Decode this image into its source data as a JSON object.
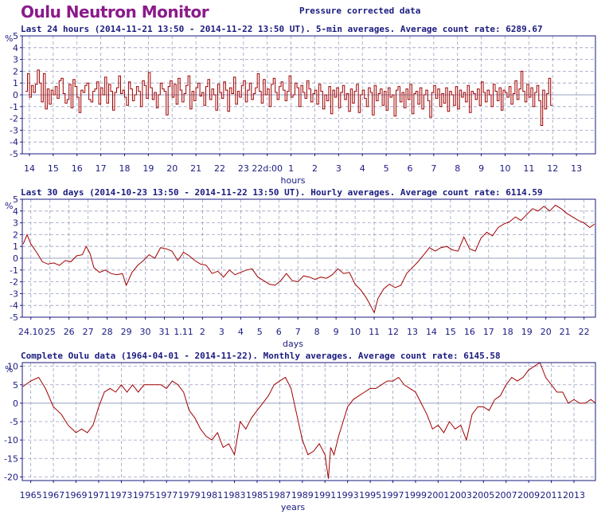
{
  "header": {
    "title": "Oulu Neutron Monitor",
    "subtitle": "Pressure corrected data"
  },
  "colors": {
    "line": "#a00000",
    "frame": "#1a1a80",
    "grid": "#9aa0c0",
    "title": "#8b1a8b"
  },
  "chart_data": [
    {
      "type": "line",
      "title": "Last 24 hours (2014-11-21 13:50 - 2014-11-22 13:50 UT). 5-min averages. Average count rate: 6289.67",
      "ylabel": "%",
      "xlabel": "hours",
      "ylim": [
        -5,
        5
      ],
      "yticks": [
        -5,
        -4,
        -3,
        -2,
        -1,
        0,
        1,
        2,
        3,
        4,
        5
      ],
      "xlim": [
        13.7,
        37.8
      ],
      "xticks": [
        {
          "x": 14,
          "label": "14"
        },
        {
          "x": 15,
          "label": "15"
        },
        {
          "x": 16,
          "label": "16"
        },
        {
          "x": 17,
          "label": "17"
        },
        {
          "x": 18,
          "label": "18"
        },
        {
          "x": 19,
          "label": "19"
        },
        {
          "x": 20,
          "label": "20"
        },
        {
          "x": 21,
          "label": "21"
        },
        {
          "x": 22,
          "label": "22"
        },
        {
          "x": 23,
          "label": "23"
        },
        {
          "x": 24,
          "label": "22d:00"
        },
        {
          "x": 25,
          "label": "1"
        },
        {
          "x": 26,
          "label": "2"
        },
        {
          "x": 27,
          "label": "3"
        },
        {
          "x": 28,
          "label": "4"
        },
        {
          "x": 29,
          "label": "5"
        },
        {
          "x": 30,
          "label": "6"
        },
        {
          "x": 31,
          "label": "7"
        },
        {
          "x": 32,
          "label": "8"
        },
        {
          "x": 33,
          "label": "9"
        },
        {
          "x": 34,
          "label": "10"
        },
        {
          "x": 35,
          "label": "11"
        },
        {
          "x": 36,
          "label": "12"
        },
        {
          "x": 37,
          "label": "13"
        }
      ],
      "grid": true,
      "step": true,
      "series": [
        {
          "x_start": 13.833,
          "x_step": 0.08333,
          "values": [
            0.3,
            1.8,
            -0.2,
            0.8,
            0.2,
            0.9,
            2.1,
            1.0,
            -0.6,
            1.8,
            -1.2,
            0.5,
            -0.8,
            0.4,
            0.0,
            0.7,
            -0.3,
            1.2,
            1.4,
            0.1,
            -0.7,
            -0.4,
            0.9,
            -1.1,
            1.3,
            0.7,
            -0.2,
            -1.5,
            0.4,
            0.2,
            0.8,
            1.0,
            -0.4,
            -0.6,
            0.3,
            0.5,
            1.1,
            -0.8,
            0.6,
            0.0,
            1.5,
            -0.7,
            0.9,
            0.3,
            -1.3,
            0.2,
            0.6,
            1.6,
            0.1,
            0.4,
            -0.2,
            -0.9,
            1.1,
            0.5,
            -0.5,
            0.0,
            0.7,
            0.3,
            -1.0,
            1.2,
            0.8,
            -0.3,
            1.9,
            0.6,
            -0.4,
            0.2,
            -1.1,
            0.0,
            1.0,
            0.5,
            0.3,
            -1.7,
            0.7,
            1.2,
            -0.2,
            0.9,
            -0.8,
            1.4,
            0.4,
            -0.6,
            0.1,
            0.8,
            1.6,
            -1.2,
            0.3,
            -0.5,
            0.6,
            1.0,
            -0.1,
            0.2,
            -0.9,
            0.7,
            1.3,
            -0.4,
            0.5,
            0.0,
            -1.3,
            0.9,
            0.2,
            -0.3,
            1.1,
            0.4,
            -1.4,
            0.6,
            0.1,
            1.5,
            -0.8,
            0.3,
            -0.2,
            0.8,
            1.2,
            -0.6,
            0.4,
            1.0,
            -0.4,
            0.1,
            0.6,
            1.8,
            0.3,
            -0.7,
            1.3,
            0.0,
            0.5,
            -1.0,
            0.9,
            1.4,
            0.2,
            -0.4,
            0.7,
            1.1,
            0.4,
            -0.5,
            0.3,
            1.6,
            -0.2,
            0.0,
            1.0,
            0.6,
            -1.0,
            0.8,
            0.2,
            -0.3,
            1.2,
            0.5,
            -0.6,
            0.1,
            0.4,
            -0.8,
            0.9,
            0.3,
            -1.2,
            0.0,
            -0.5,
            0.7,
            -1.6,
            0.4,
            -0.2,
            0.6,
            -1.1,
            0.2,
            0.8,
            -0.4,
            0.1,
            -1.4,
            0.5,
            -0.7,
            0.3,
            0.9,
            -1.5,
            0.0,
            0.4,
            -0.3,
            -1.0,
            0.6,
            0.2,
            -1.7,
            0.8,
            -0.5,
            0.1,
            0.5,
            -0.9,
            0.3,
            -1.3,
            0.6,
            -0.2,
            0.0,
            -1.8,
            0.4,
            0.7,
            -0.6,
            0.2,
            -1.1,
            0.5,
            -0.4,
            0.9,
            -1.6,
            0.1,
            0.3,
            -0.8,
            0.6,
            -1.2,
            0.0,
            0.4,
            -0.5,
            -1.9,
            0.2,
            0.8,
            -0.3,
            0.5,
            -1.0,
            0.1,
            -0.7,
            0.6,
            -1.4,
            0.3,
            0.0,
            -0.9,
            0.7,
            -1.2,
            0.4,
            -0.2,
            0.2,
            -0.6,
            0.8,
            -1.5,
            0.3,
            0.1,
            -0.4,
            0.5,
            -0.9,
            1.1,
            0.2,
            -0.6,
            0.4,
            0.0,
            -1.0,
            0.9,
            0.3,
            -0.5,
            0.6,
            -1.3,
            0.4,
            0.2,
            -0.2,
            0.7,
            -0.8,
            0.1,
            1.2,
            -0.4,
            0.5,
            2.0,
            0.3,
            -0.6,
            0.9,
            -0.2,
            0.6,
            -1.0,
            0.2,
            0.8,
            -0.5,
            -2.6,
            0.4,
            -1.2,
            0.1,
            1.4,
            -0.9
          ]
        }
      ]
    },
    {
      "type": "line",
      "title": "Last 30 days (2014-10-23 13:50 - 2014-11-22 13:50 UT). Hourly averages. Average count rate: 6114.59",
      "ylabel": "%",
      "xlabel": "days",
      "ylim": [
        -5,
        5
      ],
      "yticks": [
        -5,
        -4,
        -3,
        -2,
        -1,
        0,
        1,
        2,
        3,
        4,
        5
      ],
      "xlim": [
        23.55,
        53.6
      ],
      "xticks": [
        {
          "x": 24,
          "label": "24.10"
        },
        {
          "x": 25,
          "label": "25"
        },
        {
          "x": 26,
          "label": "26"
        },
        {
          "x": 27,
          "label": "27"
        },
        {
          "x": 28,
          "label": "28"
        },
        {
          "x": 29,
          "label": "29"
        },
        {
          "x": 30,
          "label": "30"
        },
        {
          "x": 31,
          "label": "31"
        },
        {
          "x": 32,
          "label": "1.11"
        },
        {
          "x": 33,
          "label": "2"
        },
        {
          "x": 34,
          "label": "3"
        },
        {
          "x": 35,
          "label": "4"
        },
        {
          "x": 36,
          "label": "5"
        },
        {
          "x": 37,
          "label": "6"
        },
        {
          "x": 38,
          "label": "7"
        },
        {
          "x": 39,
          "label": "8"
        },
        {
          "x": 40,
          "label": "9"
        },
        {
          "x": 41,
          "label": "10"
        },
        {
          "x": 42,
          "label": "11"
        },
        {
          "x": 43,
          "label": "12"
        },
        {
          "x": 44,
          "label": "13"
        },
        {
          "x": 45,
          "label": "14"
        },
        {
          "x": 46,
          "label": "15"
        },
        {
          "x": 47,
          "label": "16"
        },
        {
          "x": 48,
          "label": "17"
        },
        {
          "x": 49,
          "label": "18"
        },
        {
          "x": 50,
          "label": "19"
        },
        {
          "x": 51,
          "label": "20"
        },
        {
          "x": 52,
          "label": "21"
        },
        {
          "x": 53,
          "label": "22"
        }
      ],
      "grid": true,
      "step": false,
      "series": [
        {
          "x": [
            23.6,
            23.8,
            24.0,
            24.3,
            24.6,
            24.9,
            25.2,
            25.5,
            25.8,
            26.1,
            26.4,
            26.7,
            26.9,
            27.1,
            27.3,
            27.6,
            27.9,
            28.2,
            28.5,
            28.8,
            29.0,
            29.3,
            29.6,
            29.9,
            30.2,
            30.5,
            30.8,
            31.1,
            31.4,
            31.7,
            32.0,
            32.3,
            32.6,
            32.9,
            33.2,
            33.5,
            33.8,
            34.1,
            34.4,
            34.7,
            35.0,
            35.3,
            35.6,
            35.9,
            36.2,
            36.5,
            36.8,
            37.1,
            37.4,
            37.7,
            38.0,
            38.3,
            38.6,
            38.9,
            39.2,
            39.5,
            39.8,
            40.1,
            40.4,
            40.7,
            41.0,
            41.3,
            41.6,
            41.8,
            42.0,
            42.2,
            42.5,
            42.8,
            43.1,
            43.4,
            43.7,
            44.0,
            44.3,
            44.6,
            44.9,
            45.2,
            45.5,
            45.8,
            46.1,
            46.4,
            46.7,
            47.0,
            47.3,
            47.6,
            47.9,
            48.2,
            48.5,
            48.8,
            49.1,
            49.4,
            49.7,
            50.0,
            50.3,
            50.6,
            50.9,
            51.2,
            51.5,
            51.8,
            52.1,
            52.4,
            52.7,
            53.0,
            53.3,
            53.55
          ],
          "values": [
            1.2,
            2.0,
            1.2,
            0.5,
            -0.3,
            -0.5,
            -0.4,
            -0.6,
            -0.2,
            -0.3,
            0.2,
            0.3,
            1.0,
            0.4,
            -0.8,
            -1.2,
            -1.0,
            -1.3,
            -1.4,
            -1.3,
            -2.3,
            -1.2,
            -0.6,
            -0.2,
            0.3,
            0.0,
            0.9,
            0.8,
            0.6,
            -0.2,
            0.5,
            0.2,
            -0.2,
            -0.5,
            -0.6,
            -1.3,
            -1.1,
            -1.6,
            -1.0,
            -1.4,
            -1.2,
            -1.0,
            -0.9,
            -1.6,
            -1.9,
            -2.2,
            -2.3,
            -1.9,
            -1.3,
            -1.9,
            -2.0,
            -1.5,
            -1.6,
            -1.8,
            -1.6,
            -1.7,
            -1.4,
            -0.9,
            -1.3,
            -1.2,
            -2.2,
            -2.7,
            -3.4,
            -4.0,
            -4.6,
            -3.4,
            -2.6,
            -2.2,
            -2.5,
            -2.3,
            -1.3,
            -0.8,
            -0.3,
            0.3,
            0.9,
            0.6,
            0.9,
            1.0,
            0.7,
            0.6,
            1.8,
            0.8,
            0.6,
            1.7,
            2.2,
            1.9,
            2.6,
            2.9,
            3.1,
            3.5,
            3.2,
            3.7,
            4.2,
            4.0,
            4.4,
            4.0,
            4.5,
            4.2,
            3.8,
            3.5,
            3.2,
            3.0,
            2.6,
            2.9
          ]
        }
      ]
    },
    {
      "type": "line",
      "title": "Complete Oulu data (1964-04-01 - 2014-11-22). Monthly averages. Average count rate: 6145.58",
      "ylabel": "%",
      "xlabel": "years",
      "ylim": [
        -21,
        11
      ],
      "yticks": [
        -20,
        -15,
        -10,
        -5,
        0,
        5,
        10
      ],
      "xlim": [
        1964.25,
        2014.9
      ],
      "xticks": [
        {
          "x": 1965,
          "label": "1965"
        },
        {
          "x": 1967,
          "label": "1967"
        },
        {
          "x": 1969,
          "label": "1969"
        },
        {
          "x": 1971,
          "label": "1971"
        },
        {
          "x": 1973,
          "label": "1973"
        },
        {
          "x": 1975,
          "label": "1975"
        },
        {
          "x": 1977,
          "label": "1977"
        },
        {
          "x": 1979,
          "label": "1979"
        },
        {
          "x": 1981,
          "label": "1981"
        },
        {
          "x": 1983,
          "label": "1983"
        },
        {
          "x": 1985,
          "label": "1985"
        },
        {
          "x": 1987,
          "label": "1987"
        },
        {
          "x": 1989,
          "label": "1989"
        },
        {
          "x": 1991,
          "label": "1991"
        },
        {
          "x": 1993,
          "label": "1993"
        },
        {
          "x": 1995,
          "label": "1995"
        },
        {
          "x": 1997,
          "label": "1997"
        },
        {
          "x": 1999,
          "label": "1999"
        },
        {
          "x": 2001,
          "label": "2001"
        },
        {
          "x": 2003,
          "label": "2003"
        },
        {
          "x": 2005,
          "label": "2005"
        },
        {
          "x": 2007,
          "label": "2007"
        },
        {
          "x": 2009,
          "label": "2009"
        },
        {
          "x": 2011,
          "label": "2011"
        },
        {
          "x": 2013,
          "label": "2013"
        }
      ],
      "grid": true,
      "step": false,
      "series": [
        {
          "x": [
            1964.3,
            1965.0,
            1965.7,
            1966.3,
            1967.0,
            1967.7,
            1968.3,
            1969.0,
            1969.5,
            1970.0,
            1970.5,
            1971.0,
            1971.5,
            1972.0,
            1972.5,
            1973.0,
            1973.5,
            1974.0,
            1974.5,
            1975.0,
            1975.5,
            1976.0,
            1976.5,
            1977.0,
            1977.5,
            1978.0,
            1978.5,
            1979.0,
            1979.5,
            1980.0,
            1980.5,
            1981.0,
            1981.5,
            1982.0,
            1982.5,
            1983.0,
            1983.5,
            1984.0,
            1984.5,
            1985.0,
            1985.5,
            1986.0,
            1986.5,
            1987.0,
            1987.5,
            1988.0,
            1988.5,
            1989.0,
            1989.5,
            1990.0,
            1990.5,
            1991.0,
            1991.3,
            1991.5,
            1991.8,
            1992.2,
            1992.6,
            1993.0,
            1993.5,
            1994.0,
            1994.5,
            1995.0,
            1995.5,
            1996.0,
            1996.5,
            1997.0,
            1997.5,
            1998.0,
            1998.5,
            1999.0,
            1999.5,
            2000.0,
            2000.5,
            2001.0,
            2001.5,
            2002.0,
            2002.5,
            2003.0,
            2003.5,
            2004.0,
            2004.5,
            2005.0,
            2005.5,
            2006.0,
            2006.5,
            2007.0,
            2007.5,
            2008.0,
            2008.5,
            2009.0,
            2009.5,
            2010.0,
            2010.5,
            2011.0,
            2011.5,
            2012.0,
            2012.5,
            2013.0,
            2013.5,
            2014.0,
            2014.5,
            2014.9
          ],
          "values": [
            4.5,
            6.0,
            7.0,
            4.0,
            -1.0,
            -3.0,
            -6.0,
            -8.0,
            -7.0,
            -8.0,
            -6.0,
            -1.0,
            3.0,
            4.0,
            3.0,
            5.0,
            3.0,
            5.0,
            3.0,
            5.0,
            5.0,
            5.0,
            5.0,
            4.0,
            6.0,
            5.0,
            3.0,
            -2.0,
            -4.0,
            -7.0,
            -9.0,
            -10.0,
            -8.0,
            -12.0,
            -11.0,
            -14.0,
            -5.0,
            -7.0,
            -4.0,
            -2.0,
            0.0,
            2.0,
            5.0,
            6.0,
            7.0,
            4.0,
            -3.0,
            -10.0,
            -14.0,
            -13.0,
            -11.0,
            -14.0,
            -20.5,
            -12.0,
            -14.0,
            -9.0,
            -5.0,
            -1.0,
            1.0,
            2.0,
            3.0,
            4.0,
            4.0,
            5.0,
            6.0,
            6.0,
            7.0,
            5.0,
            4.0,
            3.0,
            0.0,
            -3.0,
            -7.0,
            -6.0,
            -8.0,
            -5.0,
            -7.0,
            -6.0,
            -10.0,
            -3.0,
            -1.0,
            -1.0,
            -2.0,
            1.0,
            2.0,
            5.0,
            7.0,
            6.0,
            7.0,
            9.0,
            10.0,
            11.0,
            7.0,
            5.0,
            3.0,
            3.0,
            0.0,
            1.0,
            0.0,
            0.0,
            1.0,
            0.0
          ]
        }
      ]
    }
  ]
}
